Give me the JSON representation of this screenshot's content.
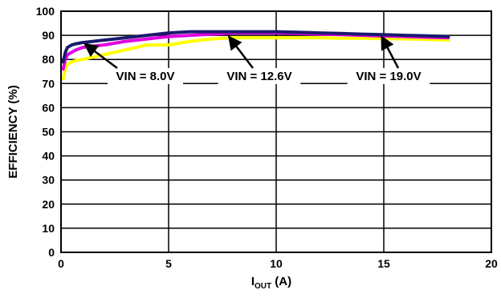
{
  "chart_data": {
    "type": "line",
    "title": "",
    "xlabel": {
      "main": "I",
      "sub": "OUT",
      "unit": " (A)"
    },
    "ylabel": "EFFICIENCY (%)",
    "xlim": [
      0,
      20
    ],
    "ylim": [
      0,
      100
    ],
    "xticks": [
      0,
      5,
      10,
      15,
      20
    ],
    "yticks": [
      0,
      10,
      20,
      30,
      40,
      50,
      60,
      70,
      80,
      90,
      100
    ],
    "grid": true,
    "series": [
      {
        "name": "VIN = 8.0V",
        "color": "#1a1a6e",
        "x": [
          0.1,
          0.2,
          0.3,
          0.5,
          0.7,
          1,
          1.5,
          2,
          3,
          4,
          5,
          6,
          7,
          8,
          9,
          10,
          11,
          12,
          13,
          14,
          15,
          16,
          17,
          18
        ],
        "y": [
          79,
          83,
          85,
          86,
          86.5,
          87,
          87.5,
          88,
          89,
          90,
          91,
          91.5,
          91.5,
          91.5,
          91.5,
          91.5,
          91.3,
          91,
          90.8,
          90.5,
          90.3,
          90,
          89.8,
          89.5
        ]
      },
      {
        "name": "VIN = 12.6V",
        "color": "#e000e0",
        "x": [
          0.1,
          0.2,
          0.3,
          0.5,
          0.7,
          1,
          1.5,
          2,
          3,
          4,
          5,
          6,
          7,
          8,
          9,
          10,
          11,
          12,
          13,
          14,
          15,
          16,
          17,
          18
        ],
        "y": [
          76,
          80,
          82,
          83,
          84,
          85,
          85.5,
          86,
          87.5,
          88.5,
          89.5,
          90,
          90.5,
          91,
          91,
          91,
          90.8,
          90.5,
          90.3,
          90,
          89.7,
          89.5,
          89.2,
          89
        ]
      },
      {
        "name": "VIN = 19.0V",
        "color": "#ffff00",
        "x": [
          0.1,
          0.2,
          0.3,
          0.5,
          0.7,
          1,
          1.5,
          2,
          3,
          4,
          5,
          6,
          7,
          8,
          9,
          10,
          11,
          12,
          13,
          14,
          15,
          16,
          17,
          18
        ],
        "y": [
          72,
          76,
          78,
          79,
          79.5,
          80,
          81,
          82,
          84,
          86,
          86,
          87.5,
          88.5,
          89,
          89,
          89,
          89,
          89,
          88.8,
          88.8,
          88.6,
          88.5,
          88.3,
          88
        ]
      }
    ],
    "annotations": [
      {
        "text": "VIN = 8.0V",
        "arrow_to": [
          1.1,
          86.5
        ]
      },
      {
        "text": "VIN = 12.6V",
        "arrow_to": [
          7.8,
          89.5
        ]
      },
      {
        "text": "VIN = 19.0V",
        "arrow_to": [
          14.9,
          89.5
        ]
      }
    ]
  }
}
